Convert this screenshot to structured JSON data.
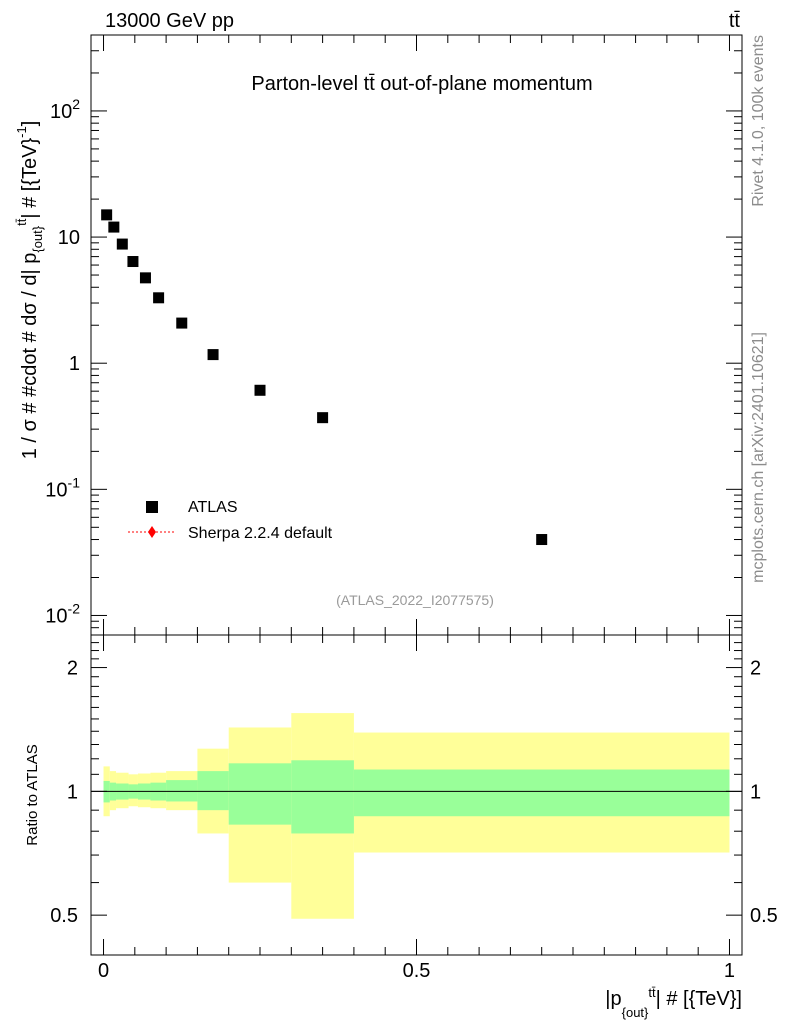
{
  "header": {
    "energy_label": "13000 GeV pp",
    "process_label": "tt̄"
  },
  "side_labels": {
    "rivet": "Rivet 4.1.0,  100k events",
    "mcplots": "mcplots.cern.ch [arXiv:2401.10621]"
  },
  "chart_data": [
    {
      "type": "scatter",
      "panel": "main",
      "title": "Parton-level tt̄ out-of-plane momentum",
      "analysis_label": "(ATLAS_2022_I2077575)",
      "ylabel": "1 / σ # #cdot # dσ / d| p_{out}^{tt̄}| # [{TeV}^{-1}]",
      "yscale": "log",
      "ylim": [
        0.007,
        400
      ],
      "xlim": [
        -0.02,
        1.02
      ],
      "ytick_labels": [
        "10^{-2}",
        "10^{-1}",
        "1",
        "10",
        "10^{2}"
      ],
      "legend": {
        "position": "lower-left",
        "entries": [
          {
            "label": "ATLAS",
            "marker": "square",
            "color": "#000000"
          },
          {
            "label": "Sherpa 2.2.4 default",
            "marker": "diamond",
            "color": "#ff0000"
          }
        ]
      },
      "series": [
        {
          "name": "ATLAS",
          "x": [
            0.005,
            0.0165,
            0.03,
            0.047,
            0.067,
            0.088,
            0.125,
            0.175,
            0.25,
            0.35,
            0.7
          ],
          "y": [
            15.0,
            12.0,
            8.8,
            6.4,
            4.75,
            3.3,
            2.08,
            1.17,
            0.61,
            0.37,
            0.04
          ]
        }
      ]
    },
    {
      "type": "area",
      "panel": "ratio",
      "ylabel": "Ratio to ATLAS",
      "xlabel": "|p_{out}^{tt̄}| # [{TeV}]",
      "yscale": "log",
      "ylim": [
        0.4,
        2.4
      ],
      "xlim": [
        -0.02,
        1.02
      ],
      "ytick_labels": [
        "0.5",
        "1",
        "2"
      ],
      "xtick_labels": [
        "0",
        "0.5",
        "1"
      ],
      "reference_line": 1.0,
      "bands": [
        {
          "name": "stat uncertainty",
          "color": "#99ff99",
          "edges": [
            0.0,
            0.01,
            0.02,
            0.04,
            0.055,
            0.075,
            0.1,
            0.15,
            0.2,
            0.3,
            0.4,
            1.0
          ],
          "low": [
            0.94,
            0.95,
            0.955,
            0.96,
            0.955,
            0.95,
            0.945,
            0.9,
            0.83,
            0.79,
            0.87
          ],
          "high": [
            1.06,
            1.05,
            1.045,
            1.04,
            1.045,
            1.05,
            1.065,
            1.12,
            1.17,
            1.19,
            1.13
          ]
        },
        {
          "name": "total uncertainty",
          "color": "#ffff99",
          "edges": [
            0.0,
            0.01,
            0.02,
            0.04,
            0.055,
            0.075,
            0.1,
            0.15,
            0.2,
            0.3,
            0.4,
            1.0
          ],
          "low": [
            0.87,
            0.9,
            0.91,
            0.92,
            0.915,
            0.91,
            0.9,
            0.79,
            0.6,
            0.49,
            0.71
          ],
          "high": [
            1.15,
            1.12,
            1.11,
            1.1,
            1.105,
            1.11,
            1.12,
            1.27,
            1.43,
            1.55,
            1.39
          ]
        }
      ]
    }
  ]
}
